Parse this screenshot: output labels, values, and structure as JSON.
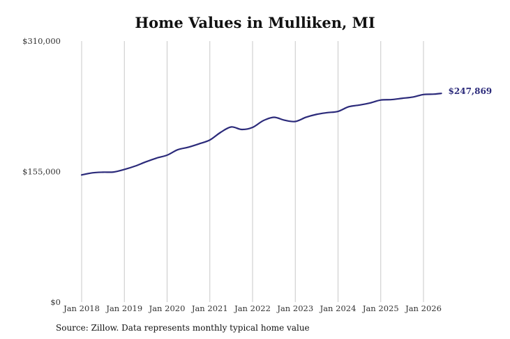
{
  "chart_data": {
    "type": "line",
    "title": "Home Values in Mulliken, MI",
    "source": "Source: Zillow. Data represents monthly typical home value",
    "y_ticks": [
      {
        "value": 0,
        "label": "$0"
      },
      {
        "value": 155000,
        "label": "$155,000"
      },
      {
        "value": 310000,
        "label": "$310,000"
      }
    ],
    "ylim": [
      0,
      310000
    ],
    "x_ticks": [
      {
        "year": 2018,
        "label": "Jan 2018"
      },
      {
        "year": 2019,
        "label": "Jan 2019"
      },
      {
        "year": 2020,
        "label": "Jan 2020"
      },
      {
        "year": 2021,
        "label": "Jan 2021"
      },
      {
        "year": 2022,
        "label": "Jan 2022"
      },
      {
        "year": 2023,
        "label": "Jan 2023"
      },
      {
        "year": 2024,
        "label": "Jan 2024"
      },
      {
        "year": 2025,
        "label": "Jan 2025"
      },
      {
        "year": 2026,
        "label": "Jan 2026"
      }
    ],
    "xlim": [
      2018,
      2026.5
    ],
    "grid": "vertical",
    "line_color": "#2b2a7a",
    "end_label": "$247,869",
    "series": [
      {
        "name": "",
        "points": [
          {
            "x": "2018-01",
            "y": 151000
          },
          {
            "x": "2018-04",
            "y": 153500
          },
          {
            "x": "2018-07",
            "y": 154300
          },
          {
            "x": "2018-10",
            "y": 154500
          },
          {
            "x": "2019-01",
            "y": 157500
          },
          {
            "x": "2019-04",
            "y": 161500
          },
          {
            "x": "2019-07",
            "y": 166500
          },
          {
            "x": "2019-10",
            "y": 171000
          },
          {
            "x": "2020-01",
            "y": 174500
          },
          {
            "x": "2020-04",
            "y": 181000
          },
          {
            "x": "2020-07",
            "y": 184000
          },
          {
            "x": "2020-10",
            "y": 188000
          },
          {
            "x": "2021-01",
            "y": 192500
          },
          {
            "x": "2021-04",
            "y": 201500
          },
          {
            "x": "2021-07",
            "y": 208000
          },
          {
            "x": "2021-10",
            "y": 205000
          },
          {
            "x": "2022-01",
            "y": 207500
          },
          {
            "x": "2022-04",
            "y": 215500
          },
          {
            "x": "2022-07",
            "y": 219500
          },
          {
            "x": "2022-10",
            "y": 216000
          },
          {
            "x": "2023-01",
            "y": 214500
          },
          {
            "x": "2023-04",
            "y": 219500
          },
          {
            "x": "2023-07",
            "y": 223000
          },
          {
            "x": "2023-10",
            "y": 225000
          },
          {
            "x": "2024-01",
            "y": 226500
          },
          {
            "x": "2024-04",
            "y": 232000
          },
          {
            "x": "2024-07",
            "y": 234000
          },
          {
            "x": "2024-10",
            "y": 236500
          },
          {
            "x": "2025-01",
            "y": 240000
          },
          {
            "x": "2025-04",
            "y": 240500
          },
          {
            "x": "2025-07",
            "y": 242000
          },
          {
            "x": "2025-10",
            "y": 243500
          },
          {
            "x": "2026-01",
            "y": 246500
          },
          {
            "x": "2026-04",
            "y": 247000
          },
          {
            "x": "2026-06",
            "y": 247869
          }
        ]
      }
    ]
  }
}
